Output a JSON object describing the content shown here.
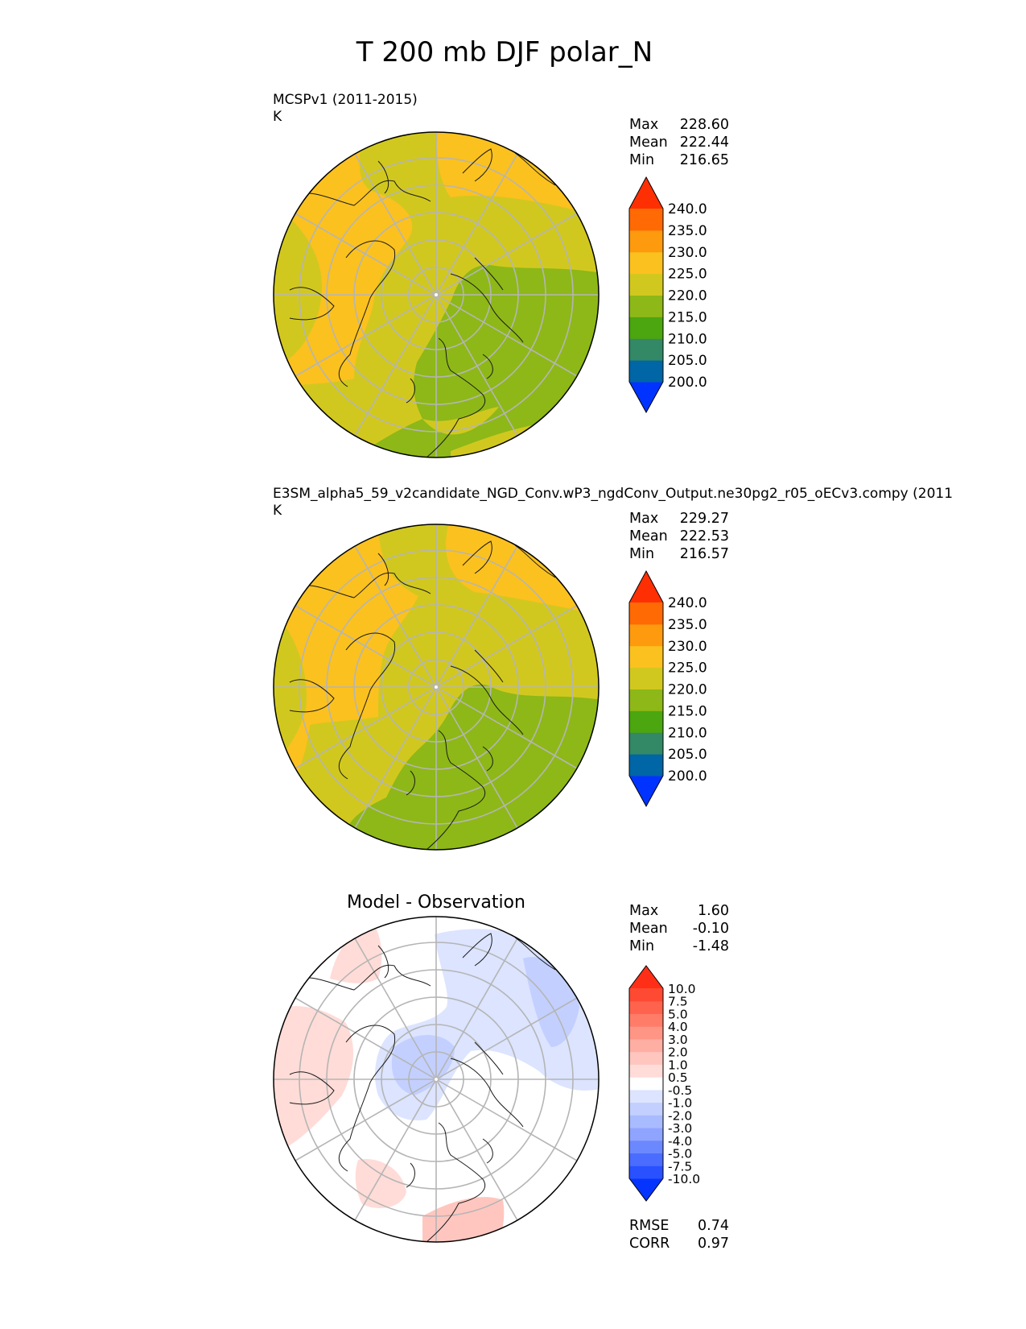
{
  "figure": {
    "title": "T 200 mb DJF polar_N"
  },
  "panels": [
    {
      "id": "test",
      "title": "MCSPv1 (2011-2015)",
      "units": "K",
      "stats": [
        {
          "label": "Max",
          "value": "228.60"
        },
        {
          "label": "Mean",
          "value": "222.44"
        },
        {
          "label": "Min",
          "value": "216.65"
        }
      ],
      "colorbar": {
        "colors": [
          "#0033ff",
          "#0066a6",
          "#338866",
          "#4ca60f",
          "#8db817",
          "#d1c81f",
          "#fbc11f",
          "#fe9a0e",
          "#ff6a05",
          "#ff2f04"
        ],
        "ticks": [
          "200.0",
          "205.0",
          "210.0",
          "215.0",
          "220.0",
          "225.0",
          "230.0",
          "235.0",
          "240.0"
        ]
      }
    },
    {
      "id": "reference",
      "title": "E3SM_alpha5_59_v2candidate_NGD_Conv.wP3_ngdConv_Output.ne30pg2_r05_oECv3.compy (2011",
      "units": "K",
      "stats": [
        {
          "label": "Max",
          "value": "229.27"
        },
        {
          "label": "Mean",
          "value": "222.53"
        },
        {
          "label": "Min",
          "value": "216.57"
        }
      ],
      "colorbar": {
        "colors": [
          "#0033ff",
          "#0066a6",
          "#338866",
          "#4ca60f",
          "#8db817",
          "#d1c81f",
          "#fbc11f",
          "#fe9a0e",
          "#ff6a05",
          "#ff2f04"
        ],
        "ticks": [
          "200.0",
          "205.0",
          "210.0",
          "215.0",
          "220.0",
          "225.0",
          "230.0",
          "235.0",
          "240.0"
        ]
      }
    },
    {
      "id": "difference",
      "title": "Model - Observation",
      "stats": [
        {
          "label": "Max",
          "value": "1.60"
        },
        {
          "label": "Mean",
          "value": "-0.10"
        },
        {
          "label": "Min",
          "value": "-1.48"
        }
      ],
      "metrics": [
        {
          "label": "RMSE",
          "value": "0.74"
        },
        {
          "label": "CORR",
          "value": "0.97"
        }
      ],
      "colorbar": {
        "colors": [
          "#0534ff",
          "#2951ff",
          "#4a6cff",
          "#6b88ff",
          "#8ea4ff",
          "#a9bbff",
          "#c3d0ff",
          "#dce4ff",
          "#ffffff",
          "#ffdcd8",
          "#ffc6bf",
          "#ffaea3",
          "#ff9585",
          "#ff7c69",
          "#ff634d",
          "#ff4a33",
          "#ff2f17"
        ],
        "ticks": [
          "-10.0",
          "-7.5",
          "-5.0",
          "-4.0",
          "-3.0",
          "-2.0",
          "-1.0",
          "-0.5",
          "0.5",
          "1.0",
          "2.0",
          "3.0",
          "4.0",
          "5.0",
          "7.5",
          "10.0"
        ]
      }
    }
  ]
}
